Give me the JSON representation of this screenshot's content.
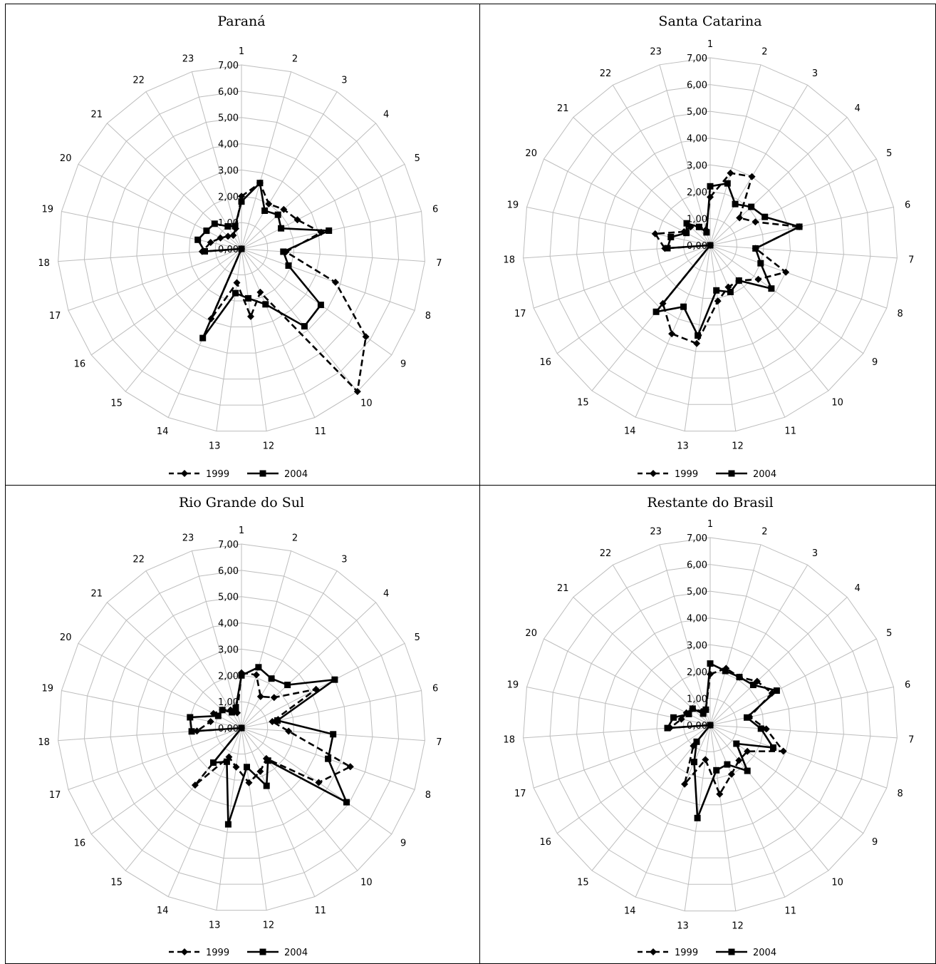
{
  "chart_data": [
    {
      "type": "radar",
      "title": "Paraná",
      "categories": [
        "1",
        "2",
        "3",
        "4",
        "5",
        "6",
        "7",
        "8",
        "9",
        "10",
        "11",
        "12",
        "13",
        "14",
        "15",
        "16",
        "17",
        "18",
        "19",
        "20",
        "21",
        "22",
        "23"
      ],
      "ticks": [
        "0,00",
        "1,00",
        "2,00",
        "3,00",
        "4,00",
        "5,00",
        "6,00",
        "7,00"
      ],
      "rlim": [
        0,
        7
      ],
      "legend_position": "bottom",
      "series": [
        {
          "name": "1999",
          "style": "dashed",
          "marker": "diamond",
          "values": [
            2.0,
            2.6,
            2.0,
            2.2,
            2.4,
            3.1,
            1.7,
            3.8,
            5.8,
            7.0,
            1.8,
            2.6,
            1.3,
            2.9,
            0,
            0,
            0,
            1.5,
            1.2,
            0.9,
            0.7,
            0.6,
            0.8
          ]
        },
        {
          "name": "2004",
          "style": "solid",
          "marker": "square",
          "values": [
            1.8,
            2.6,
            1.7,
            1.9,
            1.7,
            3.4,
            1.6,
            1.9,
            3.7,
            3.8,
            2.3,
            1.9,
            1.7,
            3.7,
            0,
            0,
            0,
            1.4,
            1.7,
            1.5,
            1.4,
            1.0,
            0.9
          ]
        }
      ]
    },
    {
      "type": "radar",
      "title": "Santa Catarina",
      "categories": [
        "1",
        "2",
        "3",
        "4",
        "5",
        "6",
        "7",
        "8",
        "9",
        "10",
        "11",
        "12",
        "13",
        "14",
        "15",
        "16",
        "17",
        "18",
        "19",
        "20",
        "21",
        "22",
        "23"
      ],
      "ticks": [
        "0,00",
        "1,00",
        "2,00",
        "3,00",
        "4,00",
        "5,00",
        "6,00",
        "7,00"
      ],
      "rlim": [
        0,
        7
      ],
      "legend_position": "bottom",
      "series": [
        {
          "name": "1999",
          "style": "dashed",
          "marker": "diamond",
          "values": [
            1.8,
            2.8,
            3.0,
            1.5,
            1.9,
            3.4,
            1.7,
            3.0,
            2.2,
            1.7,
            1.7,
            2.1,
            3.7,
            3.6,
            2.8,
            0,
            0,
            1.7,
            2.1,
            1.1,
            1.0,
            0.8,
            0.6
          ]
        },
        {
          "name": "2004",
          "style": "solid",
          "marker": "square",
          "values": [
            2.2,
            2.4,
            1.8,
            2.1,
            2.3,
            3.4,
            1.7,
            2.0,
            2.8,
            1.7,
            1.9,
            1.7,
            3.4,
            2.5,
            3.2,
            0,
            0,
            1.6,
            1.5,
            1.0,
            1.2,
            0.8,
            0.5
          ]
        }
      ]
    },
    {
      "type": "radar",
      "title": "Rio Grande do Sul",
      "categories": [
        "1",
        "2",
        "3",
        "4",
        "5",
        "6",
        "7",
        "8",
        "9",
        "10",
        "11",
        "12",
        "13",
        "14",
        "15",
        "16",
        "17",
        "18",
        "19",
        "20",
        "21",
        "22",
        "23"
      ],
      "ticks": [
        "0,00",
        "1,00",
        "2,00",
        "3,00",
        "4,00",
        "5,00",
        "6,00",
        "7,00"
      ],
      "rlim": [
        0,
        7
      ],
      "legend_position": "bottom",
      "series": [
        {
          "name": "1999",
          "style": "dashed",
          "marker": "diamond",
          "values": [
            2.1,
            2.1,
            1.4,
            1.7,
            3.2,
            1.2,
            1.8,
            4.4,
            3.6,
            1.5,
            1.8,
            2.1,
            1.5,
            1.2,
            2.8,
            0,
            0,
            1.7,
            1.2,
            1.2,
            1.0,
            0.8,
            0.6
          ]
        },
        {
          "name": "2004",
          "style": "solid",
          "marker": "square",
          "values": [
            2.0,
            2.4,
            2.2,
            2.4,
            4.0,
            1.4,
            3.5,
            3.5,
            4.9,
            1.6,
            2.4,
            1.5,
            3.7,
            1.4,
            1.7,
            0,
            0,
            1.9,
            2.0,
            1.0,
            1.0,
            0.7,
            0.8
          ]
        }
      ]
    },
    {
      "type": "radar",
      "title": "Restante do Brasil",
      "categories": [
        "1",
        "2",
        "3",
        "4",
        "5",
        "6",
        "7",
        "8",
        "9",
        "10",
        "11",
        "12",
        "13",
        "14",
        "15",
        "16",
        "17",
        "18",
        "19",
        "20",
        "21",
        "22",
        "23"
      ],
      "ticks": [
        "0,00",
        "1,00",
        "2,00",
        "3,00",
        "4,00",
        "5,00",
        "6,00",
        "7,00"
      ],
      "rlim": [
        0,
        7
      ],
      "legend_position": "bottom",
      "series": [
        {
          "name": "1999",
          "style": "dashed",
          "marker": "diamond",
          "values": [
            1.9,
            2.2,
            2.1,
            2.4,
            2.6,
            1.5,
            2.1,
            2.9,
            1.7,
            1.7,
            2.0,
            2.6,
            1.3,
            2.4,
            1.0,
            0,
            0,
            1.5,
            1.1,
            1.0,
            0.9,
            0.6,
            0.6
          ]
        },
        {
          "name": "2004",
          "style": "solid",
          "marker": "square",
          "values": [
            2.3,
            2.1,
            2.1,
            2.2,
            2.8,
            1.4,
            1.9,
            2.5,
            1.2,
            2.2,
            1.6,
            1.7,
            3.5,
            1.5,
            0.8,
            0,
            0,
            1.6,
            1.4,
            0.9,
            0.9,
            0.5,
            0.6
          ]
        }
      ]
    }
  ]
}
